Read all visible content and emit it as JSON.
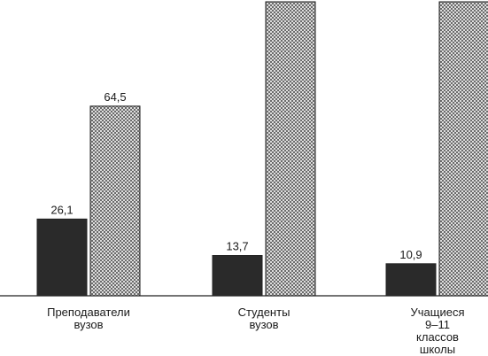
{
  "chart_data": {
    "type": "bar",
    "title": "",
    "xlabel": "",
    "ylabel": "",
    "grid": false,
    "ylim": [
      0,
      100
    ],
    "categories": [
      [
        "Преподаватели",
        "вузов"
      ],
      [
        "Студенты",
        "вузов"
      ],
      [
        "Учащиеся",
        "9–11",
        "классов",
        "школы"
      ]
    ],
    "series": [
      {
        "style": "solid-dark",
        "color": "#2a2a2a",
        "values": [
          26.1,
          13.7,
          10.9
        ],
        "labels": [
          "26,1",
          "13,7",
          "10,9"
        ]
      },
      {
        "style": "crosshatch",
        "color": "#8f8f8f",
        "values": [
          64.5,
          100,
          100
        ],
        "labels": [
          "64,5",
          "",
          ""
        ]
      }
    ]
  }
}
